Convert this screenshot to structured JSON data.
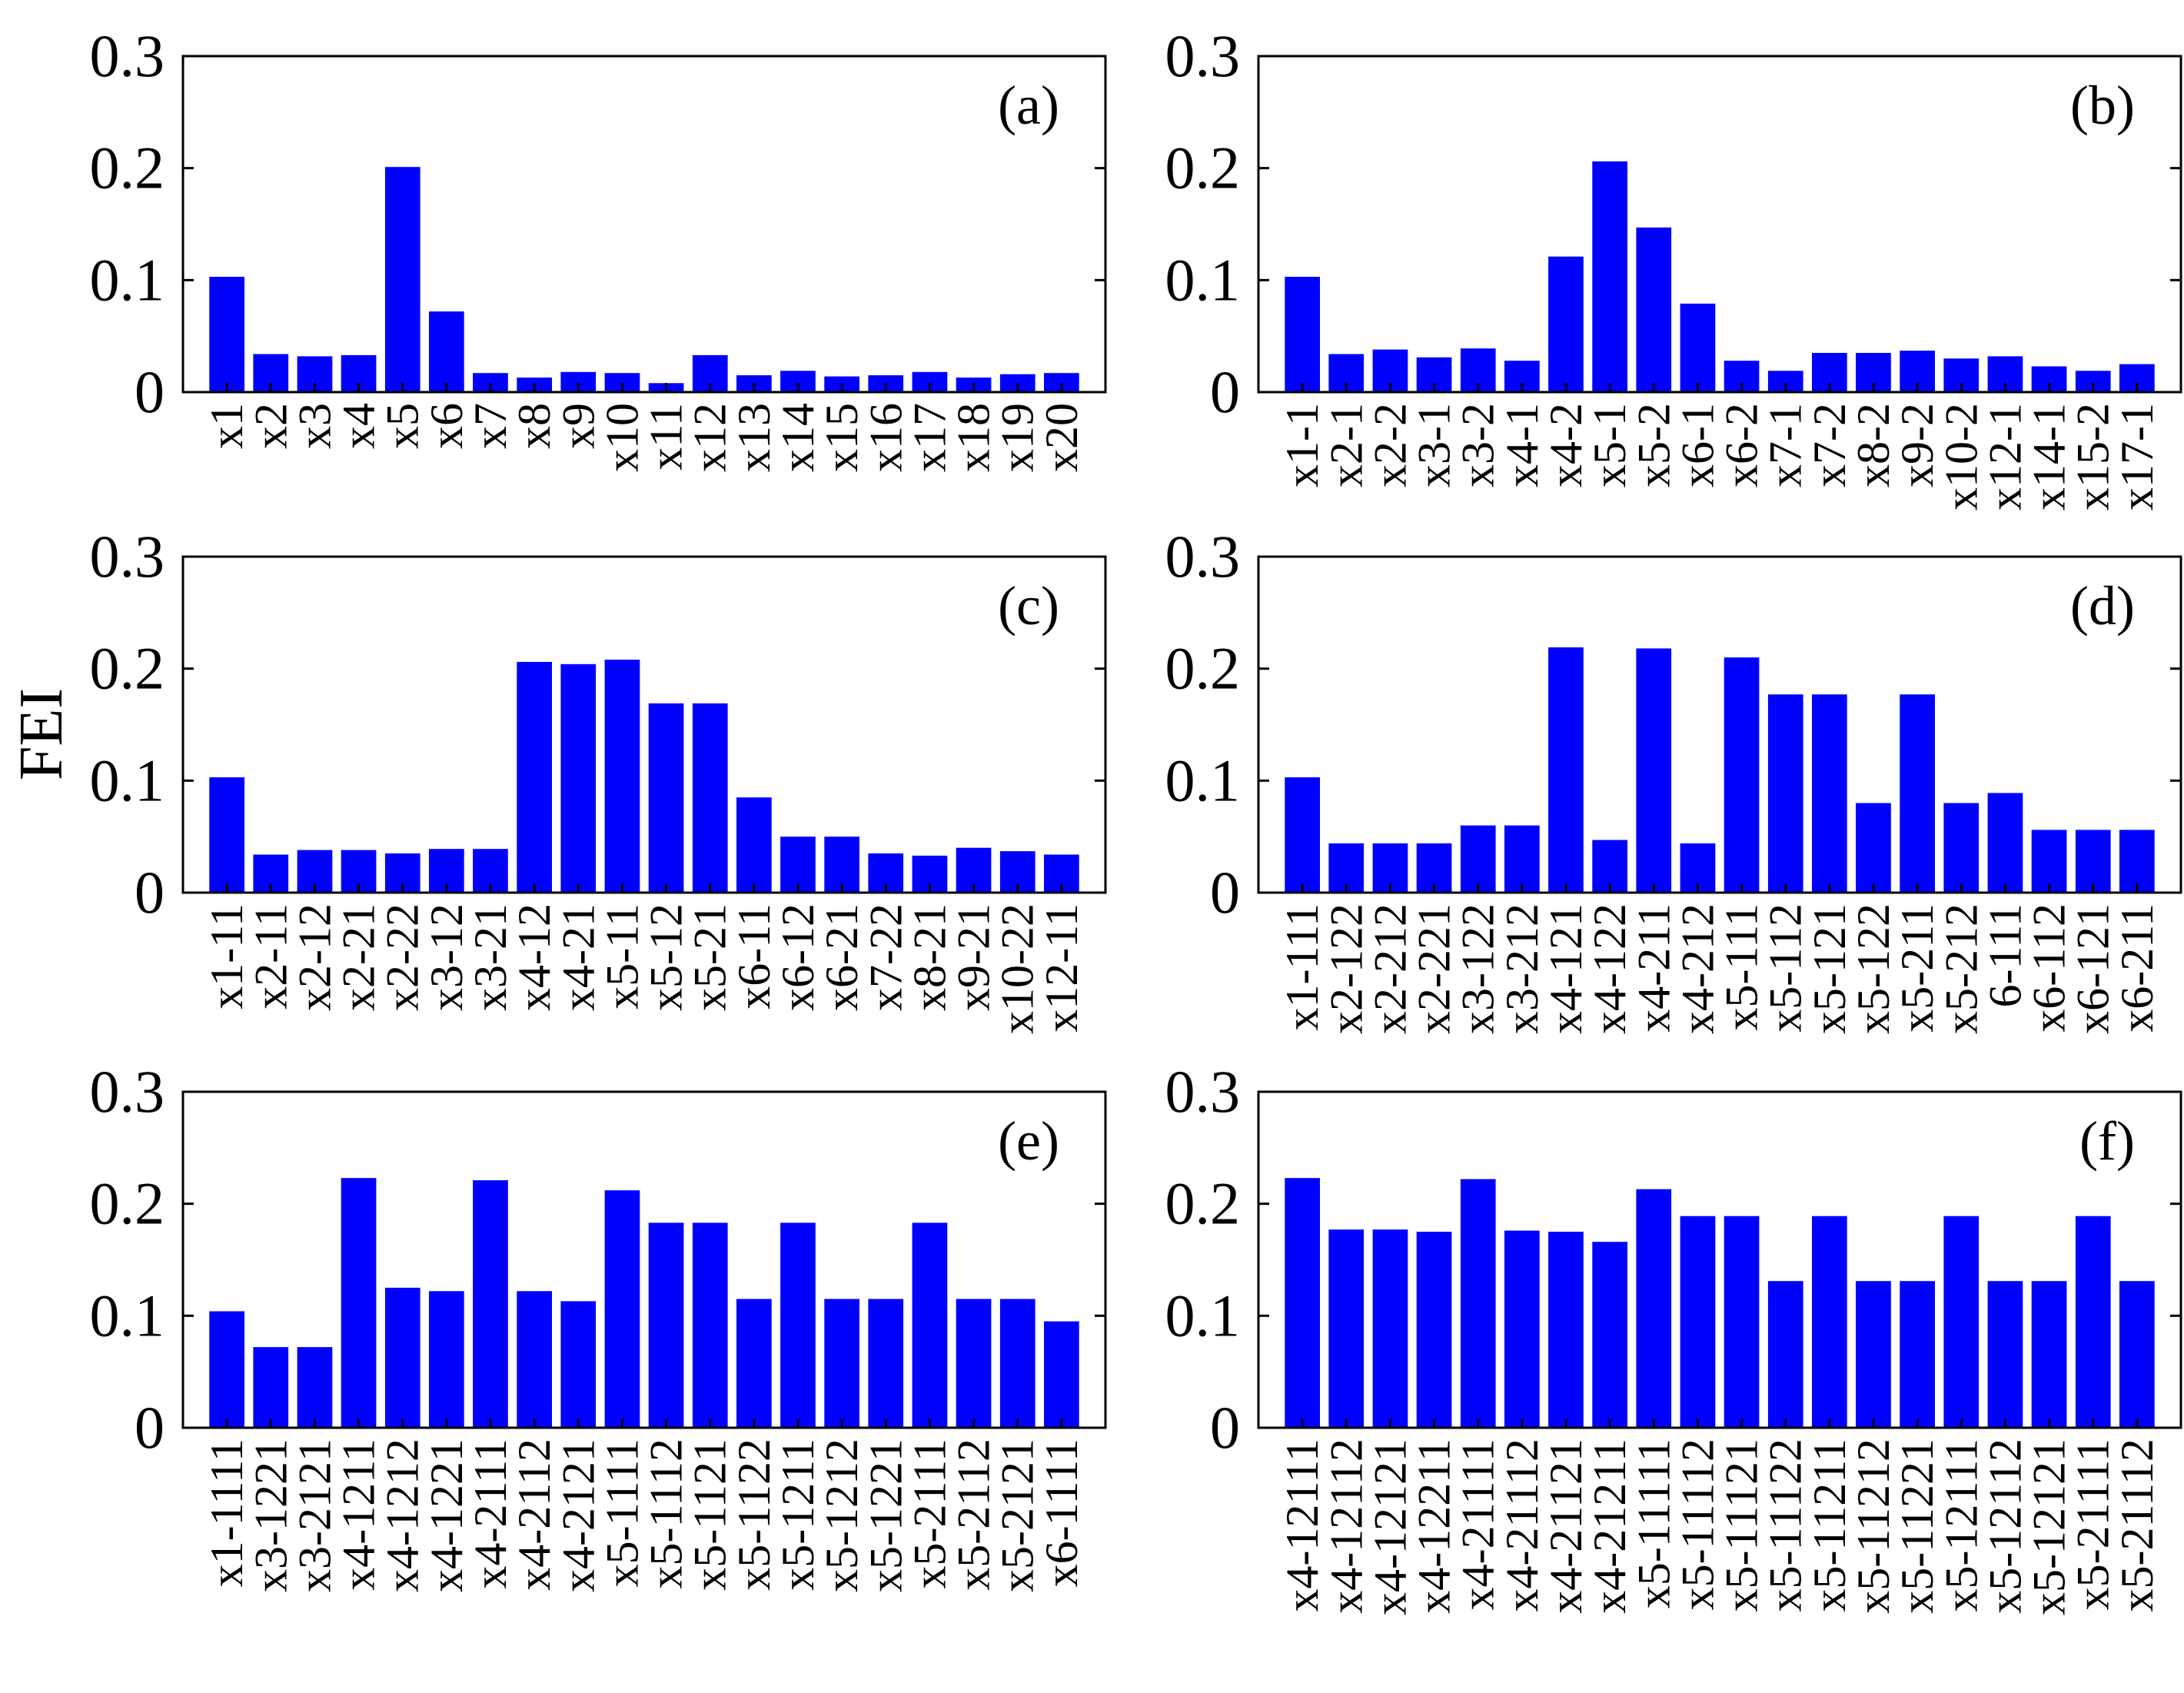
{
  "figure": {
    "ylabel": "FEI",
    "bar_color": "#0000ff"
  },
  "chart_data": [
    {
      "type": "bar",
      "panel_label": "(a)",
      "ylabel": "FEI",
      "ylim": [
        0,
        0.3
      ],
      "yticks": [
        "0",
        "0.1",
        "0.2",
        "0.3"
      ],
      "categories": [
        "x1",
        "x2",
        "x3",
        "x4",
        "x5",
        "x6",
        "x7",
        "x8",
        "x9",
        "x10",
        "x11",
        "x12",
        "x13",
        "x14",
        "x15",
        "x16",
        "x17",
        "x18",
        "x19",
        "x20"
      ],
      "values": [
        0.103,
        0.034,
        0.032,
        0.033,
        0.201,
        0.072,
        0.017,
        0.013,
        0.018,
        0.017,
        0.008,
        0.033,
        0.015,
        0.019,
        0.014,
        0.015,
        0.018,
        0.013,
        0.016,
        0.017
      ]
    },
    {
      "type": "bar",
      "panel_label": "(b)",
      "ylabel": "FEI",
      "ylim": [
        0,
        0.3
      ],
      "yticks": [
        "0",
        "0.1",
        "0.2",
        "0.3"
      ],
      "categories": [
        "x1-1",
        "x2-1",
        "x2-2",
        "x3-1",
        "x3-2",
        "x4-1",
        "x4-2",
        "x5-1",
        "x5-2",
        "x6-1",
        "x6-2",
        "x7-1",
        "x7-2",
        "x8-2",
        "x9-2",
        "x10-2",
        "x12-1",
        "x14-1",
        "x15-2",
        "x17-1"
      ],
      "values": [
        0.103,
        0.034,
        0.038,
        0.031,
        0.039,
        0.028,
        0.121,
        0.206,
        0.147,
        0.079,
        0.028,
        0.019,
        0.035,
        0.035,
        0.037,
        0.03,
        0.032,
        0.023,
        0.019,
        0.025
      ]
    },
    {
      "type": "bar",
      "panel_label": "(c)",
      "ylabel": "FEI",
      "ylim": [
        0,
        0.3
      ],
      "yticks": [
        "0",
        "0.1",
        "0.2",
        "0.3"
      ],
      "categories": [
        "x1-11",
        "x2-11",
        "x2-12",
        "x2-21",
        "x2-22",
        "x3-12",
        "x3-21",
        "x4-12",
        "x4-21",
        "x5-11",
        "x5-12",
        "x5-21",
        "x6-11",
        "x6-12",
        "x6-21",
        "x7-22",
        "x8-21",
        "x9-21",
        "x10-22",
        "x12-11"
      ],
      "values": [
        0.103,
        0.034,
        0.038,
        0.038,
        0.035,
        0.039,
        0.039,
        0.206,
        0.204,
        0.208,
        0.169,
        0.169,
        0.085,
        0.05,
        0.05,
        0.035,
        0.033,
        0.04,
        0.037,
        0.034
      ]
    },
    {
      "type": "bar",
      "panel_label": "(d)",
      "ylabel": "FEI",
      "ylim": [
        0,
        0.3
      ],
      "yticks": [
        "0",
        "0.1",
        "0.2",
        "0.3"
      ],
      "categories": [
        "x1-111",
        "x2-122",
        "x2-212",
        "x2-221",
        "x3-122",
        "x3-212",
        "x4-121",
        "x4-122",
        "x4-211",
        "x4-212",
        "x5-111",
        "x5-112",
        "x5-121",
        "x5-122",
        "x5-211",
        "x5-212",
        "6-111",
        "x6-112",
        "x6-121",
        "x6-211"
      ],
      "values": [
        0.103,
        0.044,
        0.044,
        0.044,
        0.06,
        0.06,
        0.219,
        0.047,
        0.218,
        0.044,
        0.21,
        0.177,
        0.177,
        0.08,
        0.177,
        0.08,
        0.089,
        0.056,
        0.056,
        0.056
      ]
    },
    {
      "type": "bar",
      "panel_label": "(e)",
      "ylabel": "FEI",
      "ylim": [
        0,
        0.3
      ],
      "yticks": [
        "0",
        "0.1",
        "0.2",
        "0.3"
      ],
      "categories": [
        "x1-1111",
        "x3-1221",
        "x3-2121",
        "x4-1211",
        "x4-1212",
        "x4-1221",
        "x4-2111",
        "x4-2112",
        "x4-2121",
        "x5-1111",
        "x5-1112",
        "x5-1121",
        "x5-1122",
        "x5-1211",
        "x5-1212",
        "x5-1221",
        "x5-2111",
        "x5-2112",
        "x5-2121",
        "x6-1111"
      ],
      "values": [
        0.104,
        0.072,
        0.072,
        0.223,
        0.125,
        0.122,
        0.221,
        0.122,
        0.113,
        0.212,
        0.183,
        0.183,
        0.115,
        0.183,
        0.115,
        0.115,
        0.183,
        0.115,
        0.115,
        0.095
      ]
    },
    {
      "type": "bar",
      "panel_label": "(f)",
      "ylabel": "FEI",
      "ylim": [
        0,
        0.3
      ],
      "yticks": [
        "0",
        "0.1",
        "0.2",
        "0.3"
      ],
      "categories": [
        "x4-12111",
        "x4-12112",
        "x4-12121",
        "x4-12211",
        "x4-21111",
        "x4-21112",
        "x4-21121",
        "x4-21211",
        "x5-11111",
        "x5-11112",
        "x5-11121",
        "x5-11122",
        "x5-11211",
        "x5-11212",
        "x5-11221",
        "x5-12111",
        "x5-12112",
        "x5-12121",
        "x5-21111",
        "x5-21112"
      ],
      "values": [
        0.223,
        0.177,
        0.177,
        0.175,
        0.222,
        0.176,
        0.175,
        0.166,
        0.213,
        0.189,
        0.189,
        0.131,
        0.189,
        0.131,
        0.131,
        0.189,
        0.131,
        0.131,
        0.189,
        0.131
      ]
    }
  ]
}
